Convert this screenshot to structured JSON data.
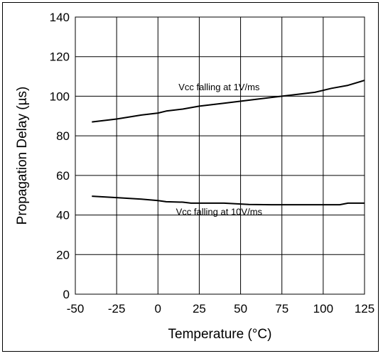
{
  "chart_data": {
    "type": "line",
    "xlabel": "Temperature (°C)",
    "ylabel": "Propagation Delay (µs)",
    "xlim": [
      -50,
      125
    ],
    "ylim": [
      0,
      140
    ],
    "xticks": [
      -50,
      -25,
      0,
      25,
      50,
      75,
      100,
      125
    ],
    "yticks": [
      0,
      20,
      40,
      60,
      80,
      100,
      120,
      140
    ],
    "grid": true,
    "series": [
      {
        "x": [
          -40,
          -25,
          -10,
          0,
          5,
          15,
          25,
          40,
          55,
          75,
          95,
          105,
          115,
          125
        ],
        "y": [
          87,
          88.5,
          90.5,
          91.5,
          92.5,
          93.5,
          95,
          96.5,
          98,
          100,
          102,
          104,
          105.5,
          108
        ]
      },
      {
        "x": [
          -40,
          -25,
          -10,
          0,
          5,
          15,
          20,
          30,
          40,
          55,
          70,
          85,
          100,
          110,
          115,
          125
        ],
        "y": [
          49.5,
          48.8,
          48,
          47.3,
          46.7,
          46.5,
          46,
          46,
          46,
          45.3,
          45.2,
          45.2,
          45.2,
          45.2,
          46,
          46
        ]
      }
    ],
    "annotations": [
      {
        "text": "Vcc falling at 1V/ms",
        "x": 37,
        "y": 103
      },
      {
        "text": "Vcc falling at 10V/ms",
        "x": 37,
        "y": 40
      }
    ]
  }
}
